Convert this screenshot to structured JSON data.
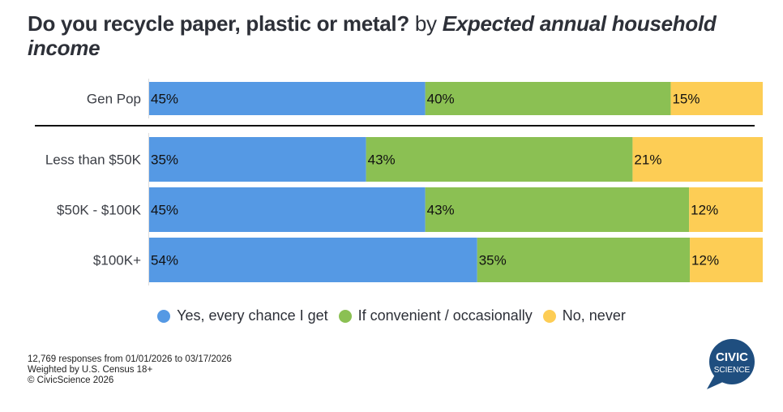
{
  "title": {
    "question": "Do you recycle paper, plastic or metal?",
    "by": "by",
    "dimension": "Expected annual household income"
  },
  "colors": {
    "yes": "#5599e4",
    "convenient": "#8bc053",
    "never": "#fdcd55"
  },
  "chart_data": {
    "type": "bar",
    "orientation": "horizontal",
    "stacked": true,
    "normalized": true,
    "title": "Do you recycle paper, plastic or metal? by Expected annual household income",
    "categories": [
      "Gen Pop",
      "Less than $50K",
      "$50K - $100K",
      "$100K+"
    ],
    "series": [
      {
        "name": "Yes, every chance I get",
        "values": [
          45,
          35,
          45,
          54
        ],
        "labels": [
          "45%",
          "35%",
          "45%",
          "54%"
        ]
      },
      {
        "name": "If convenient / occasionally",
        "values": [
          40,
          43,
          43,
          35
        ],
        "labels": [
          "40%",
          "43%",
          "43%",
          "35%"
        ]
      },
      {
        "name": "No, never",
        "values": [
          15,
          21,
          12,
          12
        ],
        "labels": [
          "15%",
          "21%",
          "12%",
          "12%"
        ]
      }
    ],
    "xlim": [
      0,
      100
    ],
    "units": "%",
    "legend": "bottom",
    "grid": false
  },
  "legend": {
    "items": [
      "Yes, every chance I get",
      "If convenient / occasionally",
      "No, never"
    ]
  },
  "footer": {
    "responses": "12,769 responses from 01/01/2026 to 03/17/2026",
    "weighting": "Weighted by U.S. Census 18+",
    "copyright": "© CivicScience 2026"
  },
  "logo": {
    "line1": "CIVIC",
    "line2": "SCIENCE",
    "color": "#1f4e7f"
  }
}
